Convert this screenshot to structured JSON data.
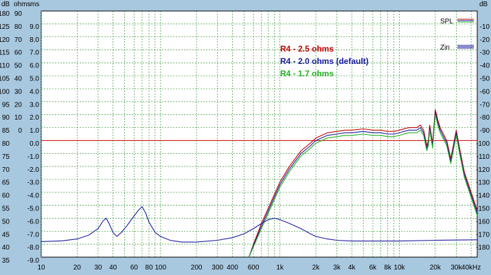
{
  "chart_data": {
    "type": "line",
    "x_scale": "log",
    "xlim": [
      10,
      45000
    ],
    "grid": true,
    "axis_headers": {
      "spl": "dB",
      "ohms": "ohms",
      "ms": "ms",
      "right": "dB"
    },
    "left_spl_ticks": [
      "180",
      "125",
      "120",
      "115",
      "110",
      "105",
      "100",
      "95",
      "90",
      "85",
      "80",
      "75",
      "70",
      "65",
      "60",
      "55",
      "50",
      "45",
      "40",
      "35"
    ],
    "ohms_ticks": [
      "90",
      "80",
      "70",
      "60",
      "50",
      "40",
      "30",
      "20",
      "10",
      "0"
    ],
    "ms_ticks": [
      "9.0",
      "8.0",
      "7.0",
      "6.0",
      "5.0",
      "4.0",
      "3.0",
      "2.0",
      "1.0",
      "0.0",
      "-1.0",
      "-2.0",
      "-3.0",
      "-4.0",
      "-5.0",
      "-6.0",
      "-7.0",
      "-8.0",
      "-9.0"
    ],
    "right_ticks": [
      "-10",
      "-20",
      "-30",
      "-40",
      "-50",
      "-60",
      "-70",
      "-80",
      "-90",
      "-100",
      "-110",
      "-120",
      "-130",
      "-140",
      "-150",
      "-160",
      "-170",
      "-180"
    ],
    "x_ticks": [
      {
        "v": 10,
        "label": "10"
      },
      {
        "v": 20,
        "label": "20"
      },
      {
        "v": 30,
        "label": "30"
      },
      {
        "v": 40,
        "label": "40"
      },
      {
        "v": 60,
        "label": "60"
      },
      {
        "v": 80,
        "label": "80"
      },
      {
        "v": 100,
        "label": "100"
      },
      {
        "v": 200,
        "label": "200"
      },
      {
        "v": 300,
        "label": "300"
      },
      {
        "v": 400,
        "label": "400"
      },
      {
        "v": 600,
        "label": "600"
      },
      {
        "v": 1000,
        "label": "1k"
      },
      {
        "v": 2000,
        "label": "2k"
      },
      {
        "v": 3000,
        "label": "3k"
      },
      {
        "v": 4000,
        "label": "4k"
      },
      {
        "v": 6000,
        "label": "6k"
      },
      {
        "v": 8000,
        "label": "8k"
      },
      {
        "v": 10000,
        "label": "10k"
      },
      {
        "v": 20000,
        "label": "20k"
      },
      {
        "v": 30000,
        "label": "30k"
      },
      {
        "v": 40000,
        "label": "40kHz"
      }
    ],
    "y_range_spl": [
      35,
      130
    ],
    "reference_line_spl": 80,
    "annotations": [
      {
        "text": "R4 - 2.5 ohms",
        "color": "#c00000"
      },
      {
        "text": "R4 - 2.0 ohms (default)",
        "color": "#1a1aa0"
      },
      {
        "text": "R4 - 1.7 ohms",
        "color": "#20b020"
      }
    ],
    "legend": [
      {
        "label": "SPL",
        "colors": [
          "#c00000",
          "#1a1aa0",
          "#20b020"
        ]
      },
      {
        "label": "Zin",
        "colors": [
          "#1a1aa0",
          "#1a1aa0",
          "#1a1aa0"
        ]
      }
    ],
    "series": [
      {
        "name": "R4 - 2.5 ohms",
        "color": "#c00000",
        "x": [
          550,
          600,
          700,
          800,
          1000,
          1200,
          1500,
          1800,
          2000,
          2500,
          3000,
          3500,
          4000,
          5000,
          6000,
          7000,
          8000,
          9000,
          10000,
          12000,
          14000,
          15000,
          16000,
          17000,
          17500,
          18000,
          19000,
          20000,
          21000,
          22000,
          25000,
          27000,
          30000,
          32000,
          35000,
          40000,
          45000
        ],
        "y": [
          35,
          40,
          48,
          54,
          64,
          70,
          76,
          79,
          81,
          83,
          83.5,
          84,
          84,
          84.5,
          84,
          84,
          83.5,
          83.5,
          84,
          85,
          85,
          86,
          84,
          78,
          80,
          86,
          79,
          92,
          88,
          85,
          80,
          73,
          84,
          77,
          68,
          60,
          53
        ]
      },
      {
        "name": "R4 - 2.0 ohms (default)",
        "color": "#1a1aa0",
        "x": [
          550,
          600,
          700,
          800,
          1000,
          1200,
          1500,
          1800,
          2000,
          2500,
          3000,
          3500,
          4000,
          5000,
          6000,
          7000,
          8000,
          9000,
          10000,
          12000,
          14000,
          15000,
          16000,
          17000,
          17500,
          18000,
          19000,
          20000,
          21000,
          22000,
          25000,
          27000,
          30000,
          32000,
          35000,
          40000,
          45000
        ],
        "y": [
          35,
          39.5,
          47,
          53,
          63,
          69,
          75,
          78,
          80,
          82,
          82.5,
          83,
          83,
          83.5,
          83,
          83,
          82.5,
          82.5,
          83,
          84,
          84,
          85,
          83,
          77,
          79,
          85,
          78,
          91,
          87,
          84,
          79,
          72,
          83,
          76,
          67,
          59,
          52
        ]
      },
      {
        "name": "R4 - 1.7 ohms",
        "color": "#20b020",
        "x": [
          550,
          600,
          700,
          800,
          1000,
          1200,
          1500,
          1800,
          2000,
          2500,
          3000,
          3500,
          4000,
          5000,
          6000,
          7000,
          8000,
          9000,
          10000,
          12000,
          14000,
          15000,
          16000,
          17000,
          17500,
          18000,
          19000,
          20000,
          21000,
          22000,
          25000,
          27000,
          30000,
          32000,
          35000,
          40000,
          45000
        ],
        "y": [
          35,
          39,
          46,
          52,
          62,
          68,
          74,
          77,
          79,
          81,
          81.5,
          82,
          82,
          82.5,
          82,
          82,
          81.5,
          81.5,
          82,
          83,
          83,
          84,
          82,
          76,
          78,
          84,
          77,
          90,
          86,
          83,
          78,
          71,
          82,
          75,
          66,
          58,
          51
        ]
      },
      {
        "name": "Zin",
        "color": "#1a1aa0",
        "x": [
          10,
          15,
          20,
          25,
          30,
          33,
          35,
          37,
          40,
          43,
          47,
          52,
          58,
          65,
          70,
          75,
          80,
          90,
          100,
          120,
          150,
          200,
          300,
          400,
          500,
          600,
          700,
          800,
          900,
          1000,
          1200,
          1500,
          1800,
          2000,
          2500,
          3000,
          4000,
          5000,
          10000,
          20000,
          45000
        ],
        "y": [
          41,
          41.3,
          42,
          43.5,
          46,
          49,
          50,
          48,
          44.5,
          43,
          44.5,
          47,
          50,
          53,
          54.5,
          52,
          48.5,
          44.5,
          43,
          41.5,
          40.8,
          40.8,
          41.5,
          42.5,
          44,
          46,
          48,
          49.5,
          50,
          49.5,
          48,
          46,
          44,
          43,
          42,
          41.5,
          41.2,
          41.2,
          41.2,
          41.5,
          41.7
        ]
      }
    ]
  }
}
